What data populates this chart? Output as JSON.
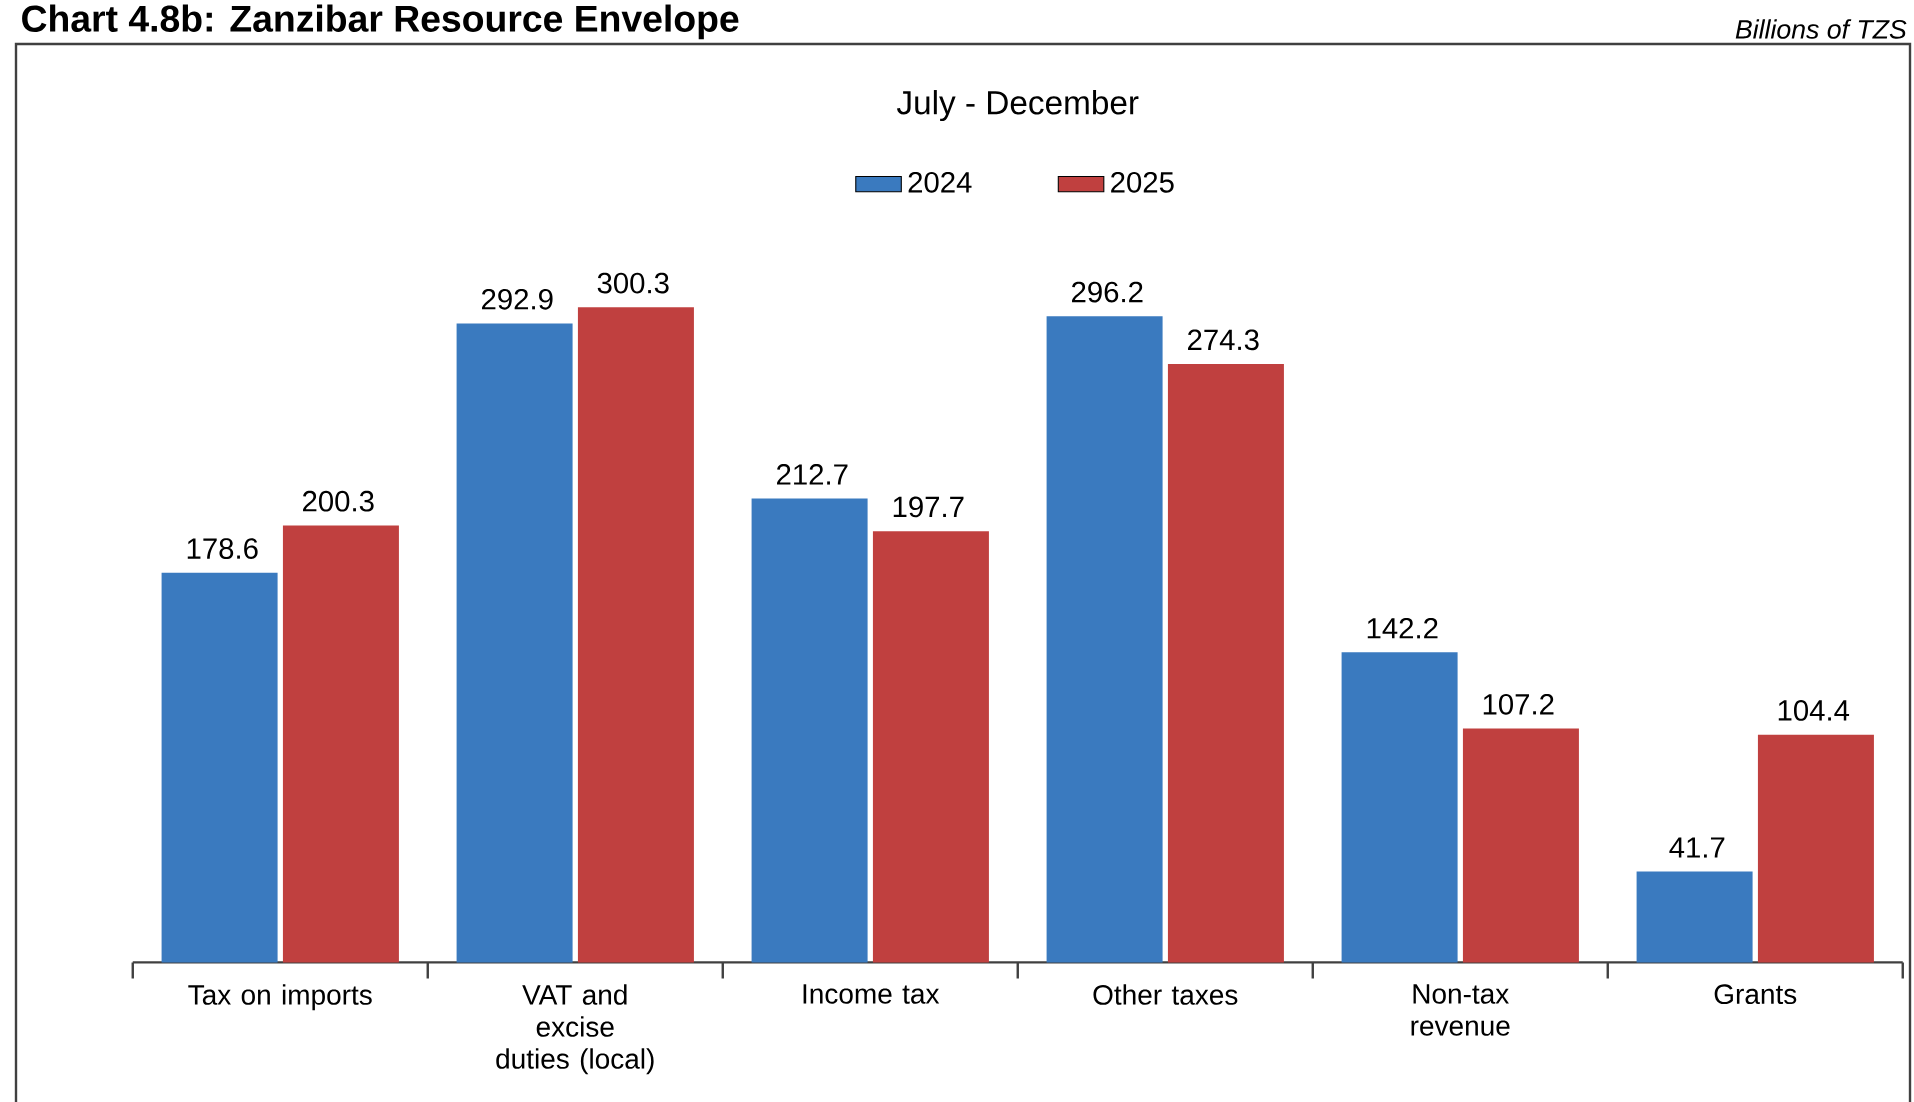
{
  "chart_data": {
    "type": "bar",
    "title": "Chart 4.8b: Zanzibar Resource Envelope",
    "subtitle": "July - December",
    "annotations": [
      "Billions of TZS"
    ],
    "categories": [
      "Tax on imports",
      "VAT and excise duties (local)",
      "Income tax",
      "Other taxes",
      "Non-tax revenue",
      "Grants"
    ],
    "series": [
      {
        "name": "2024",
        "color": "#3a7abf",
        "values": [
          178.6,
          292.9,
          212.7,
          296.2,
          142.2,
          41.7
        ]
      },
      {
        "name": "2025",
        "color": "#c0403f",
        "values": [
          200.3,
          300.3,
          197.7,
          274.3,
          107.2,
          104.4
        ]
      }
    ],
    "data_labels": true,
    "legend": "top"
  }
}
